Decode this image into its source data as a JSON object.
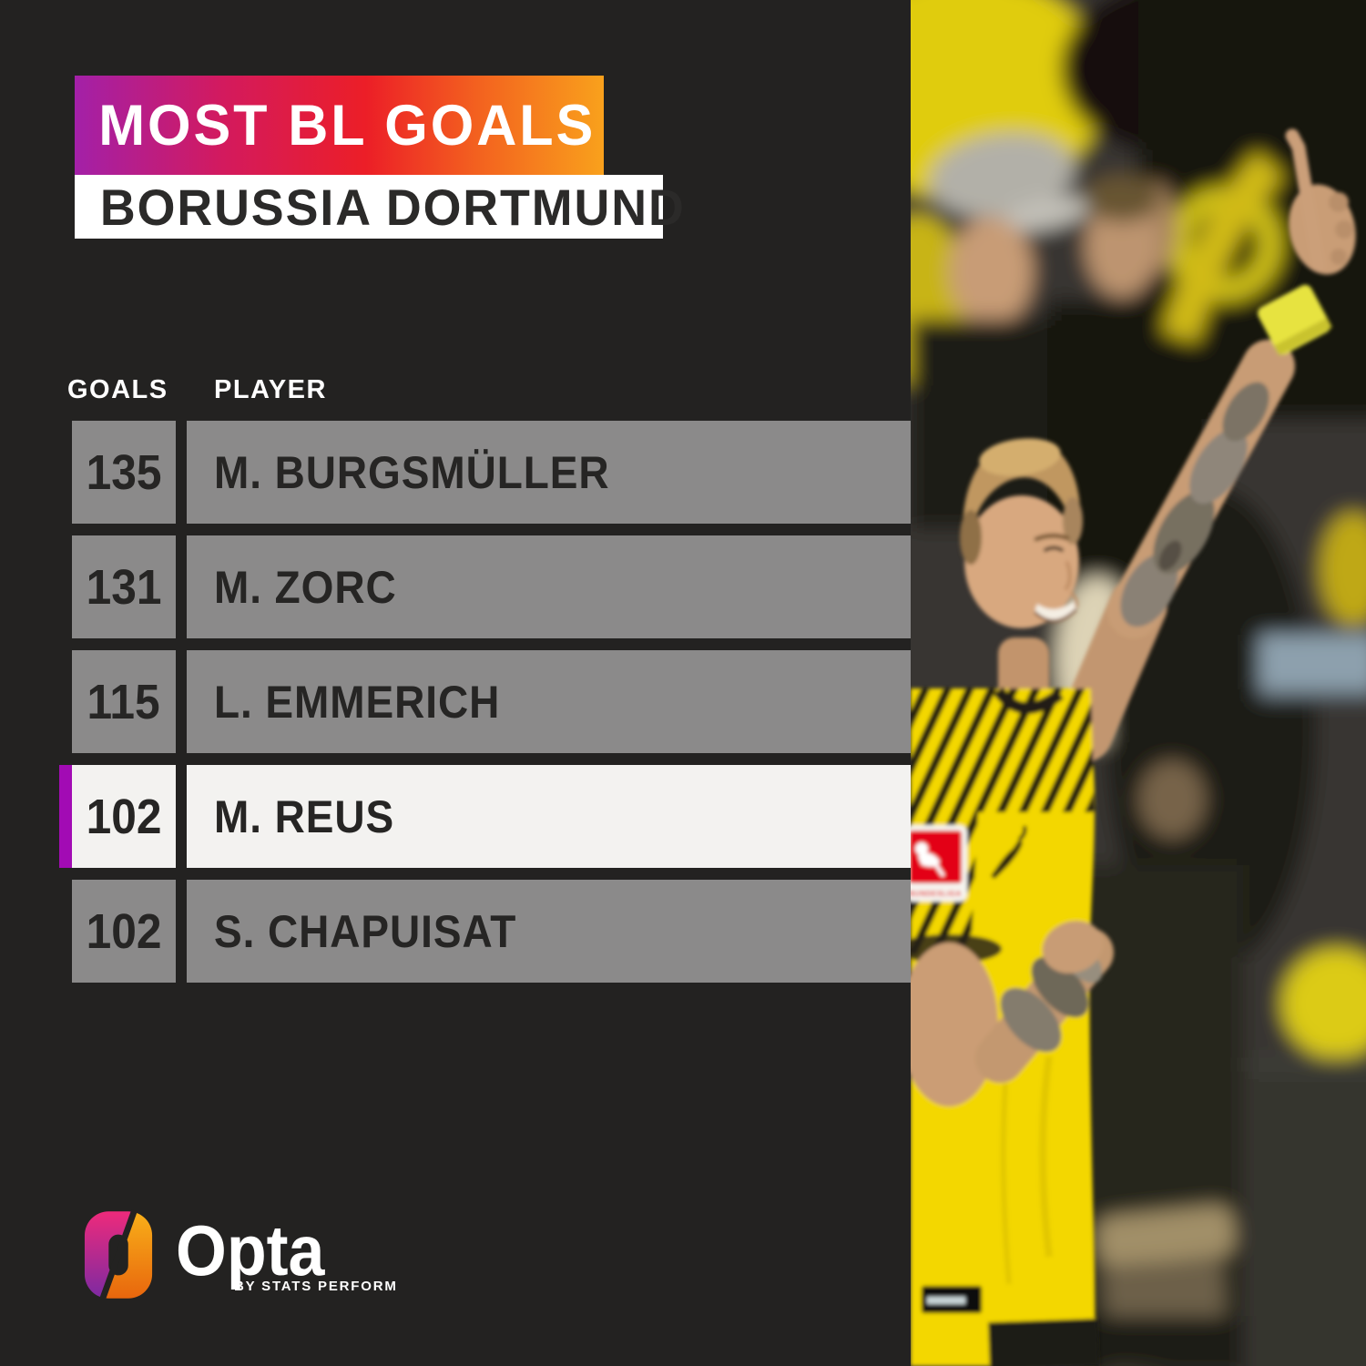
{
  "header": {
    "title": "MOST BL GOALS",
    "subtitle": "BORUSSIA DORTMUND"
  },
  "table": {
    "columns": {
      "goals": "GOALS",
      "player": "PLAYER"
    },
    "rows": [
      {
        "goals": "135",
        "player": "M. BURGSMÜLLER",
        "highlighted": false
      },
      {
        "goals": "131",
        "player": "M. ZORC",
        "highlighted": false
      },
      {
        "goals": "115",
        "player": "L. EMMERICH",
        "highlighted": false
      },
      {
        "goals": "102",
        "player": "M. REUS",
        "highlighted": true
      },
      {
        "goals": "102",
        "player": "S. CHAPUISAT",
        "highlighted": false
      }
    ]
  },
  "branding": {
    "wordmark": "Opta",
    "byline": "BY STATS PERFORM",
    "logo_icon": "opta-ring-icon"
  },
  "photo": {
    "alt": "Marco Reus celebrating in a yellow Borussia Dortmund shirt, tattooed arm raised with index finger pointing up, blurred crowd behind",
    "jersey_patch_text": "BUNDESLIGA"
  },
  "colors": {
    "background": "#232221",
    "gradient_start": "#a320a8",
    "gradient_mid": "#ec1e27",
    "gradient_end": "#f9a11c",
    "gray_row": "#8b8a8a",
    "highlight_row": "#f3f2f0",
    "highlight_accent_purple": "#a20bb4",
    "row_text": "#262524",
    "jersey_yellow": "#f3d703"
  },
  "chart_data": {
    "type": "table",
    "title": "MOST BL GOALS",
    "subtitle": "BORUSSIA DORTMUND",
    "columns": [
      "GOALS",
      "PLAYER"
    ],
    "rows": [
      [
        135,
        "M. BURGSMÜLLER"
      ],
      [
        131,
        "M. ZORC"
      ],
      [
        115,
        "L. EMMERICH"
      ],
      [
        102,
        "M. REUS"
      ],
      [
        102,
        "S. CHAPUISAT"
      ]
    ],
    "highlighted_row_index": 3,
    "legend_position": "none",
    "grid": false
  }
}
